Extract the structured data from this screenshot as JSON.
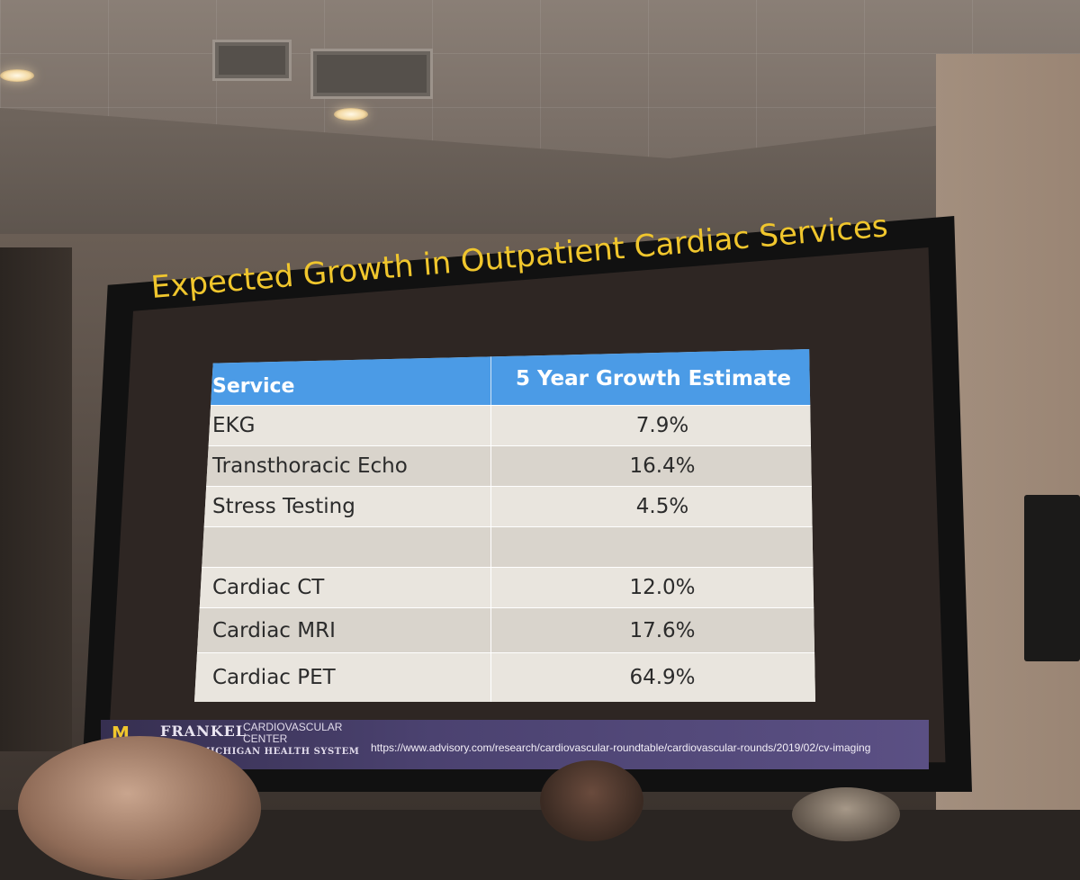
{
  "slide": {
    "title": "Expected Growth in Outpatient Cardiac Services",
    "table": {
      "headers": [
        "Service",
        "5 Year Growth Estimate"
      ],
      "rows": [
        {
          "service": "EKG",
          "growth": "7.9%"
        },
        {
          "service": "Transthoracic Echo",
          "growth": "16.4%"
        },
        {
          "service": "Stress Testing",
          "growth": "4.5%"
        },
        {
          "service": "",
          "growth": ""
        },
        {
          "service": "Cardiac CT",
          "growth": "12.0%"
        },
        {
          "service": "Cardiac MRI",
          "growth": "17.6%"
        },
        {
          "service": "Cardiac PET",
          "growth": "64.9%"
        }
      ]
    },
    "footer": {
      "logo_mark": "M",
      "logo_name": "FRANKEL",
      "logo_sub_line1": "CARDIOVASCULAR",
      "logo_sub_line2": "CENTER",
      "logo_org": "Y OF MICHIGAN HEALTH SYSTEM",
      "source_url": "https://www.advisory.com/research/cardiovascular-roundtable/cardiovascular-rounds/2019/02/cv-imaging"
    }
  },
  "colors": {
    "title": "#f0c62d",
    "header_bg": "#4b9be6",
    "footer_bg": "#4b4270"
  }
}
